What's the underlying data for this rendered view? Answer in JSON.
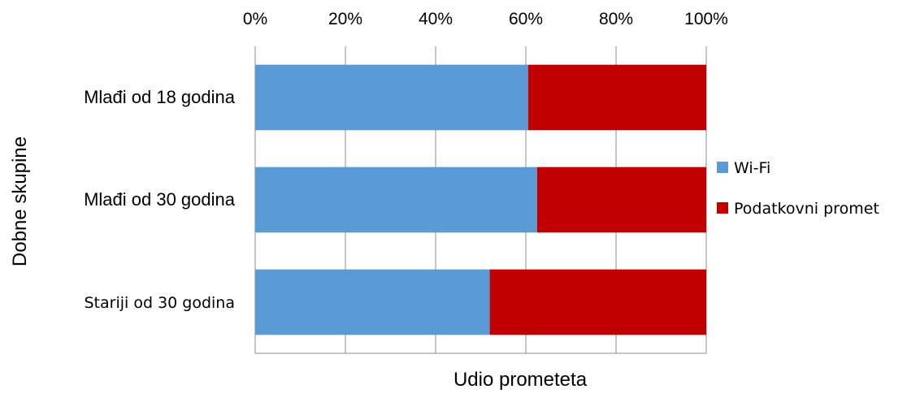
{
  "chart_data": {
    "type": "bar",
    "orientation": "horizontal",
    "stacked": "percent",
    "categories": [
      "Mlađi od 18 godina",
      "Mlađi od 30 godina",
      "Stariji od 30 godina"
    ],
    "series": [
      {
        "name": "Wi-Fi",
        "values": [
          60.5,
          62.5,
          52
        ],
        "color": "#5B9BD5"
      },
      {
        "name": "Podatkovni promet",
        "values": [
          39.5,
          37.5,
          48
        ],
        "color": "#C00000"
      }
    ],
    "xticks": [
      "0%",
      "20%",
      "40%",
      "60%",
      "80%",
      "100%"
    ],
    "xlim": [
      0,
      100
    ],
    "xlabel": "Udio prometeta",
    "ylabel": "Dobne skupine",
    "grid": "vertical",
    "legend": "right",
    "xaxis_position": "top"
  }
}
